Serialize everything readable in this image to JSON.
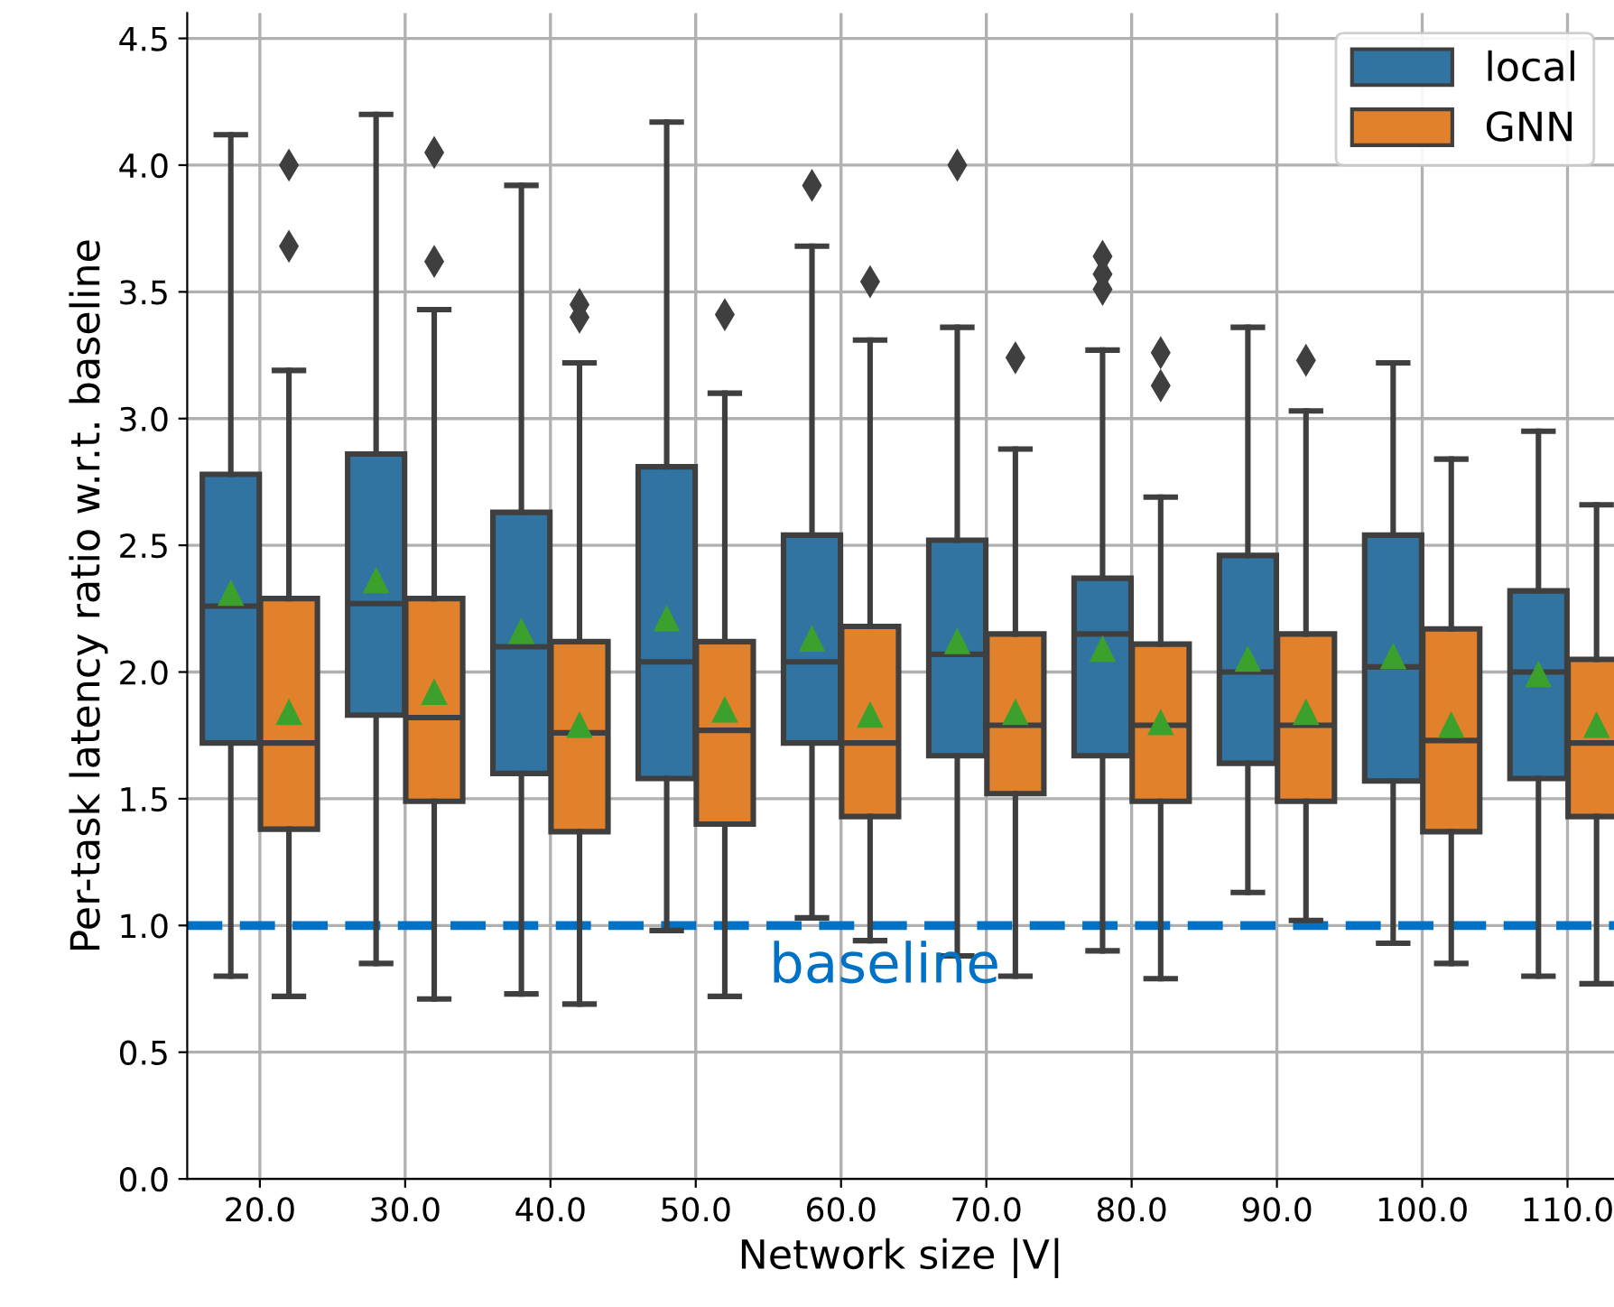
{
  "chart_data": {
    "type": "box",
    "categories": [
      "20.0",
      "30.0",
      "40.0",
      "50.0",
      "60.0",
      "70.0",
      "80.0",
      "90.0",
      "100.0",
      "110.0"
    ],
    "xlabel": "Network size |V|",
    "ylabel": "Per-task latency ratio w.r.t. baseline",
    "ylim": [
      0,
      4.6
    ],
    "yticks": [
      {
        "value": 0,
        "label": "0.0"
      },
      {
        "value": 0.5,
        "label": "0.5"
      },
      {
        "value": 1,
        "label": "1.0"
      },
      {
        "value": 1.5,
        "label": "1.5"
      },
      {
        "value": 2,
        "label": "2.0"
      },
      {
        "value": 2.5,
        "label": "2.5"
      },
      {
        "value": 3,
        "label": "3.0"
      },
      {
        "value": 3.5,
        "label": "3.5"
      },
      {
        "value": 4,
        "label": "4.0"
      },
      {
        "value": 4.5,
        "label": "4.5"
      }
    ],
    "grid": true,
    "legend": "top right",
    "ref_lines": [
      {
        "axis": "y",
        "value": 1.0,
        "label": "baseline",
        "color": "#0072c6",
        "line_style": "dashed"
      }
    ],
    "series": [
      {
        "name": "local",
        "color": "#3274a1",
        "boxes": [
          {
            "low": 0.8,
            "q1": 1.72,
            "median": 2.26,
            "q3": 2.78,
            "high": 4.12,
            "mean": 2.31
          },
          {
            "low": 0.85,
            "q1": 1.83,
            "median": 2.27,
            "q3": 2.86,
            "high": 4.2,
            "mean": 2.36
          },
          {
            "low": 0.73,
            "q1": 1.6,
            "median": 2.1,
            "q3": 2.63,
            "high": 3.92,
            "mean": 2.16
          },
          {
            "low": 0.98,
            "q1": 1.58,
            "median": 2.04,
            "q3": 2.81,
            "high": 4.17,
            "mean": 2.21
          },
          {
            "low": 1.03,
            "q1": 1.72,
            "median": 2.04,
            "q3": 2.54,
            "high": 3.68,
            "mean": 2.13,
            "outliers": [
              3.92
            ]
          },
          {
            "low": 0.88,
            "q1": 1.67,
            "median": 2.07,
            "q3": 2.52,
            "high": 3.36,
            "mean": 2.12,
            "outliers": [
              4.0
            ]
          },
          {
            "low": 0.9,
            "q1": 1.67,
            "median": 2.15,
            "q3": 2.37,
            "high": 3.27,
            "mean": 2.09,
            "outliers": [
              3.51,
              3.57,
              3.64
            ]
          },
          {
            "low": 1.13,
            "q1": 1.64,
            "median": 2.0,
            "q3": 2.46,
            "high": 3.36,
            "mean": 2.05
          },
          {
            "low": 0.93,
            "q1": 1.57,
            "median": 2.02,
            "q3": 2.54,
            "high": 3.22,
            "mean": 2.06
          },
          {
            "low": 0.8,
            "q1": 1.58,
            "median": 2.0,
            "q3": 2.32,
            "high": 2.95,
            "mean": 1.99
          }
        ]
      },
      {
        "name": "GNN",
        "color": "#e1812c",
        "boxes": [
          {
            "low": 0.72,
            "q1": 1.38,
            "median": 1.72,
            "q3": 2.29,
            "high": 3.19,
            "mean": 1.84,
            "outliers": [
              3.68,
              4.0
            ]
          },
          {
            "low": 0.71,
            "q1": 1.49,
            "median": 1.82,
            "q3": 2.29,
            "high": 3.43,
            "mean": 1.92,
            "outliers": [
              3.62,
              4.05
            ]
          },
          {
            "low": 0.69,
            "q1": 1.37,
            "median": 1.76,
            "q3": 2.12,
            "high": 3.22,
            "mean": 1.79,
            "outliers": [
              3.4,
              3.45
            ]
          },
          {
            "low": 0.72,
            "q1": 1.4,
            "median": 1.77,
            "q3": 2.12,
            "high": 3.1,
            "mean": 1.85,
            "outliers": [
              3.41
            ]
          },
          {
            "low": 0.94,
            "q1": 1.43,
            "median": 1.72,
            "q3": 2.18,
            "high": 3.31,
            "mean": 1.83,
            "outliers": [
              3.54
            ]
          },
          {
            "low": 0.8,
            "q1": 1.52,
            "median": 1.79,
            "q3": 2.15,
            "high": 2.88,
            "mean": 1.84,
            "outliers": [
              3.24
            ]
          },
          {
            "low": 0.79,
            "q1": 1.49,
            "median": 1.79,
            "q3": 2.11,
            "high": 2.69,
            "mean": 1.8,
            "outliers": [
              3.13,
              3.26
            ]
          },
          {
            "low": 1.02,
            "q1": 1.49,
            "median": 1.79,
            "q3": 2.15,
            "high": 3.03,
            "mean": 1.84,
            "outliers": [
              3.23
            ]
          },
          {
            "low": 0.85,
            "q1": 1.37,
            "median": 1.73,
            "q3": 2.17,
            "high": 2.84,
            "mean": 1.79
          },
          {
            "low": 0.77,
            "q1": 1.43,
            "median": 1.72,
            "q3": 2.05,
            "high": 2.66,
            "mean": 1.79
          }
        ]
      }
    ]
  }
}
